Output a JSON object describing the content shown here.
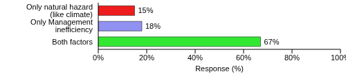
{
  "chart_data": {
    "type": "bar",
    "orientation": "horizontal",
    "categories": [
      "Only natural hazard (like climate)",
      "Only Management inefficiency",
      "Both factors"
    ],
    "values": [
      15,
      18,
      67
    ],
    "value_labels": [
      "15%",
      "18%",
      "67%"
    ],
    "data_labels": true,
    "colors": [
      "#ee1c1c",
      "#9191f2",
      "#33e833"
    ],
    "x_label": "Response (%)",
    "xlim": [
      0,
      100
    ],
    "xticks": [
      {
        "value": 0,
        "label": "0%"
      },
      {
        "value": 20,
        "label": "20%"
      },
      {
        "value": 40,
        "label": "40%"
      },
      {
        "value": 60,
        "label": "60%"
      },
      {
        "value": 80,
        "label": "80%"
      },
      {
        "value": 100,
        "label": "100%"
      }
    ],
    "grid": false
  }
}
